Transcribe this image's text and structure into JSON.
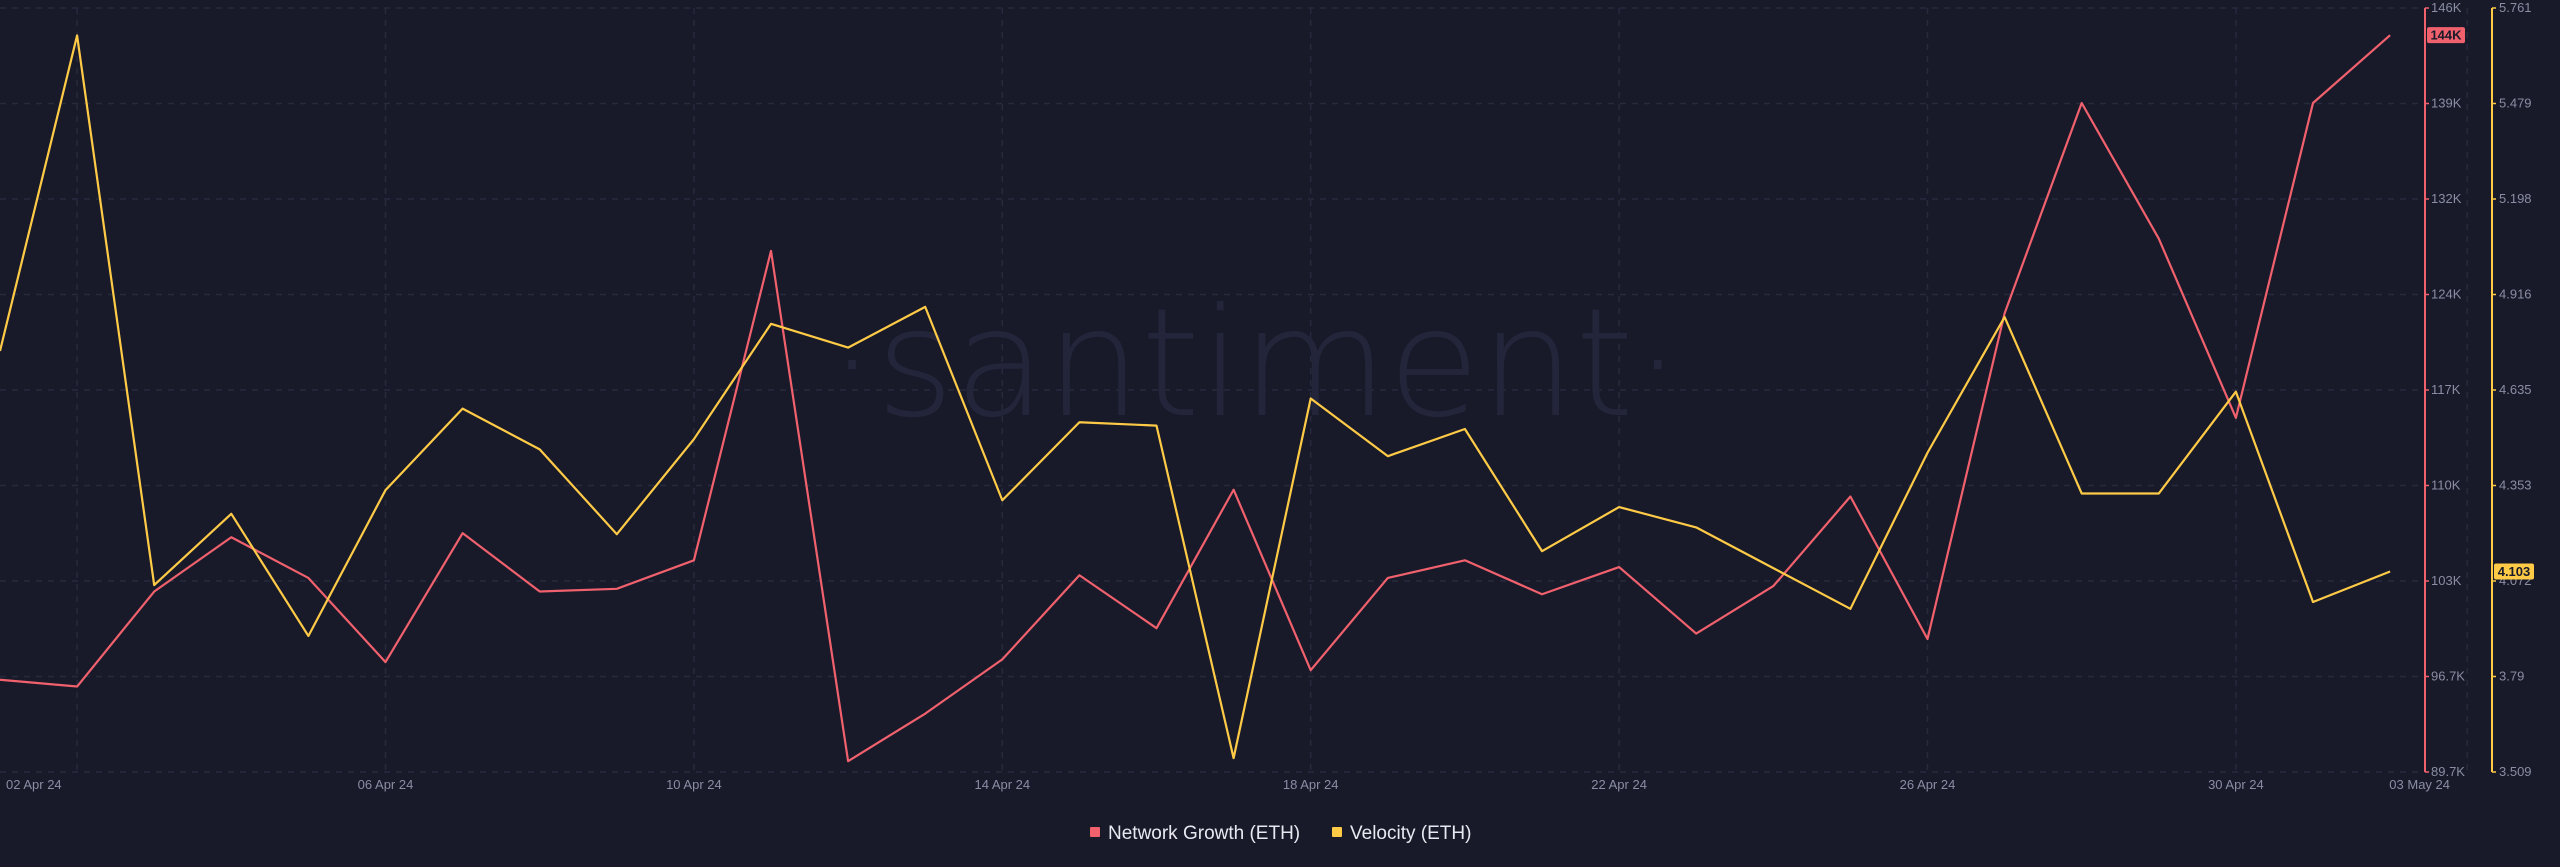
{
  "watermark": "·santiment·",
  "colors": {
    "background": "#181a2a",
    "network_growth": "#f0616d",
    "velocity": "#ffcb47"
  },
  "chart_data": {
    "type": "line",
    "x": [
      "01 Apr 24",
      "02 Apr 24",
      "03 Apr 24",
      "04 Apr 24",
      "05 Apr 24",
      "06 Apr 24",
      "07 Apr 24",
      "08 Apr 24",
      "09 Apr 24",
      "10 Apr 24",
      "11 Apr 24",
      "12 Apr 24",
      "13 Apr 24",
      "14 Apr 24",
      "15 Apr 24",
      "16 Apr 24",
      "17 Apr 24",
      "18 Apr 24",
      "19 Apr 24",
      "20 Apr 24",
      "21 Apr 24",
      "22 Apr 24",
      "23 Apr 24",
      "24 Apr 24",
      "25 Apr 24",
      "26 Apr 24",
      "27 Apr 24",
      "28 Apr 24",
      "29 Apr 24",
      "30 Apr 24",
      "01 May 24",
      "02 May 24",
      "03 May 24"
    ],
    "x_ticks": [
      "02 Apr 24",
      "06 Apr 24",
      "10 Apr 24",
      "14 Apr 24",
      "18 Apr 24",
      "22 Apr 24",
      "26 Apr 24",
      "30 Apr 24",
      "03 May 24"
    ],
    "series": [
      {
        "name": "Network Growth (ETH)",
        "axis": "left",
        "color": "#f0616d",
        "values": [
          96.5,
          96.0,
          103.0,
          107.0,
          104.0,
          97.8,
          107.3,
          103.0,
          103.2,
          105.3,
          128.1,
          90.5,
          94.0,
          98.0,
          104.2,
          100.3,
          110.5,
          97.2,
          104.0,
          105.3,
          102.8,
          104.8,
          99.9,
          103.4,
          110.0,
          99.5,
          123.5,
          139.0,
          129.0,
          115.8,
          139.0,
          144.0,
          null
        ],
        "last_value_label": "144K"
      },
      {
        "name": "Velocity (ETH)",
        "axis": "right",
        "color": "#ffcb47",
        "values": [
          4.75,
          5.68,
          4.06,
          4.27,
          3.91,
          4.34,
          4.58,
          4.46,
          4.21,
          4.49,
          4.83,
          4.76,
          4.88,
          4.31,
          4.54,
          4.53,
          3.55,
          4.61,
          4.44,
          4.52,
          4.16,
          4.29,
          4.23,
          4.11,
          3.99,
          4.45,
          4.85,
          4.33,
          4.33,
          4.63,
          4.01,
          4.1,
          null
        ],
        "last_value_label": "4.103"
      }
    ],
    "y_left": {
      "ticks": [
        "89.7K",
        "96.7K",
        "103K",
        "110K",
        "117K",
        "124K",
        "132K",
        "139K",
        "146K"
      ],
      "range": [
        89.7,
        146
      ],
      "unit": "K"
    },
    "y_right": {
      "ticks": [
        "3.509",
        "3.79",
        "4.072",
        "4.353",
        "4.635",
        "4.916",
        "5.198",
        "5.479",
        "5.761"
      ],
      "range": [
        3.509,
        5.761
      ]
    },
    "grid": true,
    "legend_position": "bottom-center"
  }
}
